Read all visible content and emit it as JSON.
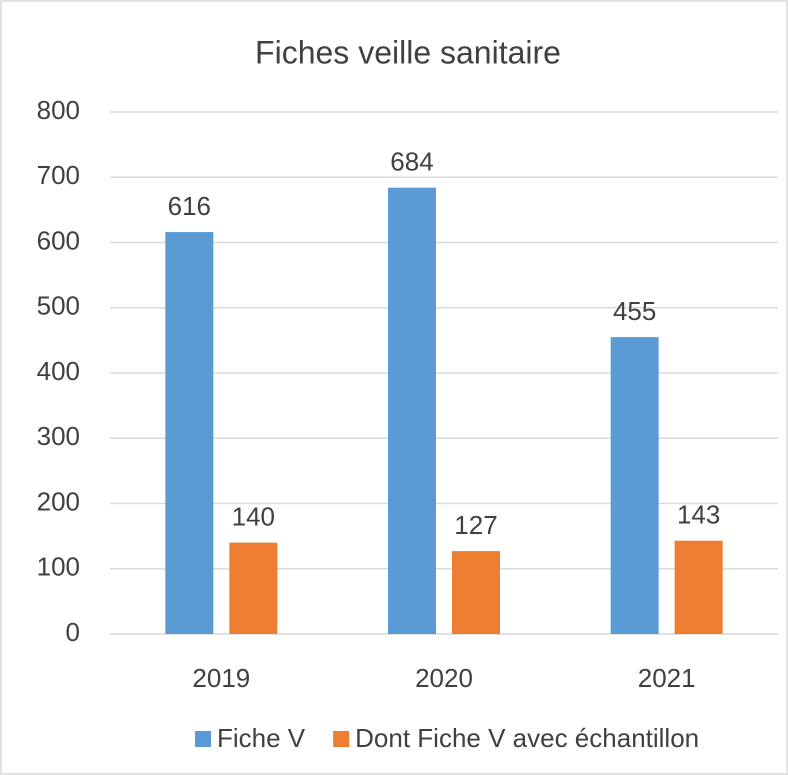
{
  "chart_data": {
    "type": "bar",
    "title": "Fiches veille sanitaire",
    "categories": [
      "2019",
      "2020",
      "2021"
    ],
    "series": [
      {
        "name": "Fiche V",
        "color": "#5b9bd5",
        "values": [
          616,
          684,
          455
        ]
      },
      {
        "name": "Dont Fiche V avec échantillon",
        "color": "#ed7d31",
        "values": [
          140,
          127,
          143
        ]
      }
    ],
    "ylim": [
      0,
      800
    ],
    "yticks": [
      0,
      100,
      200,
      300,
      400,
      500,
      600,
      700,
      800
    ],
    "grid": true,
    "legend": "bottom"
  }
}
